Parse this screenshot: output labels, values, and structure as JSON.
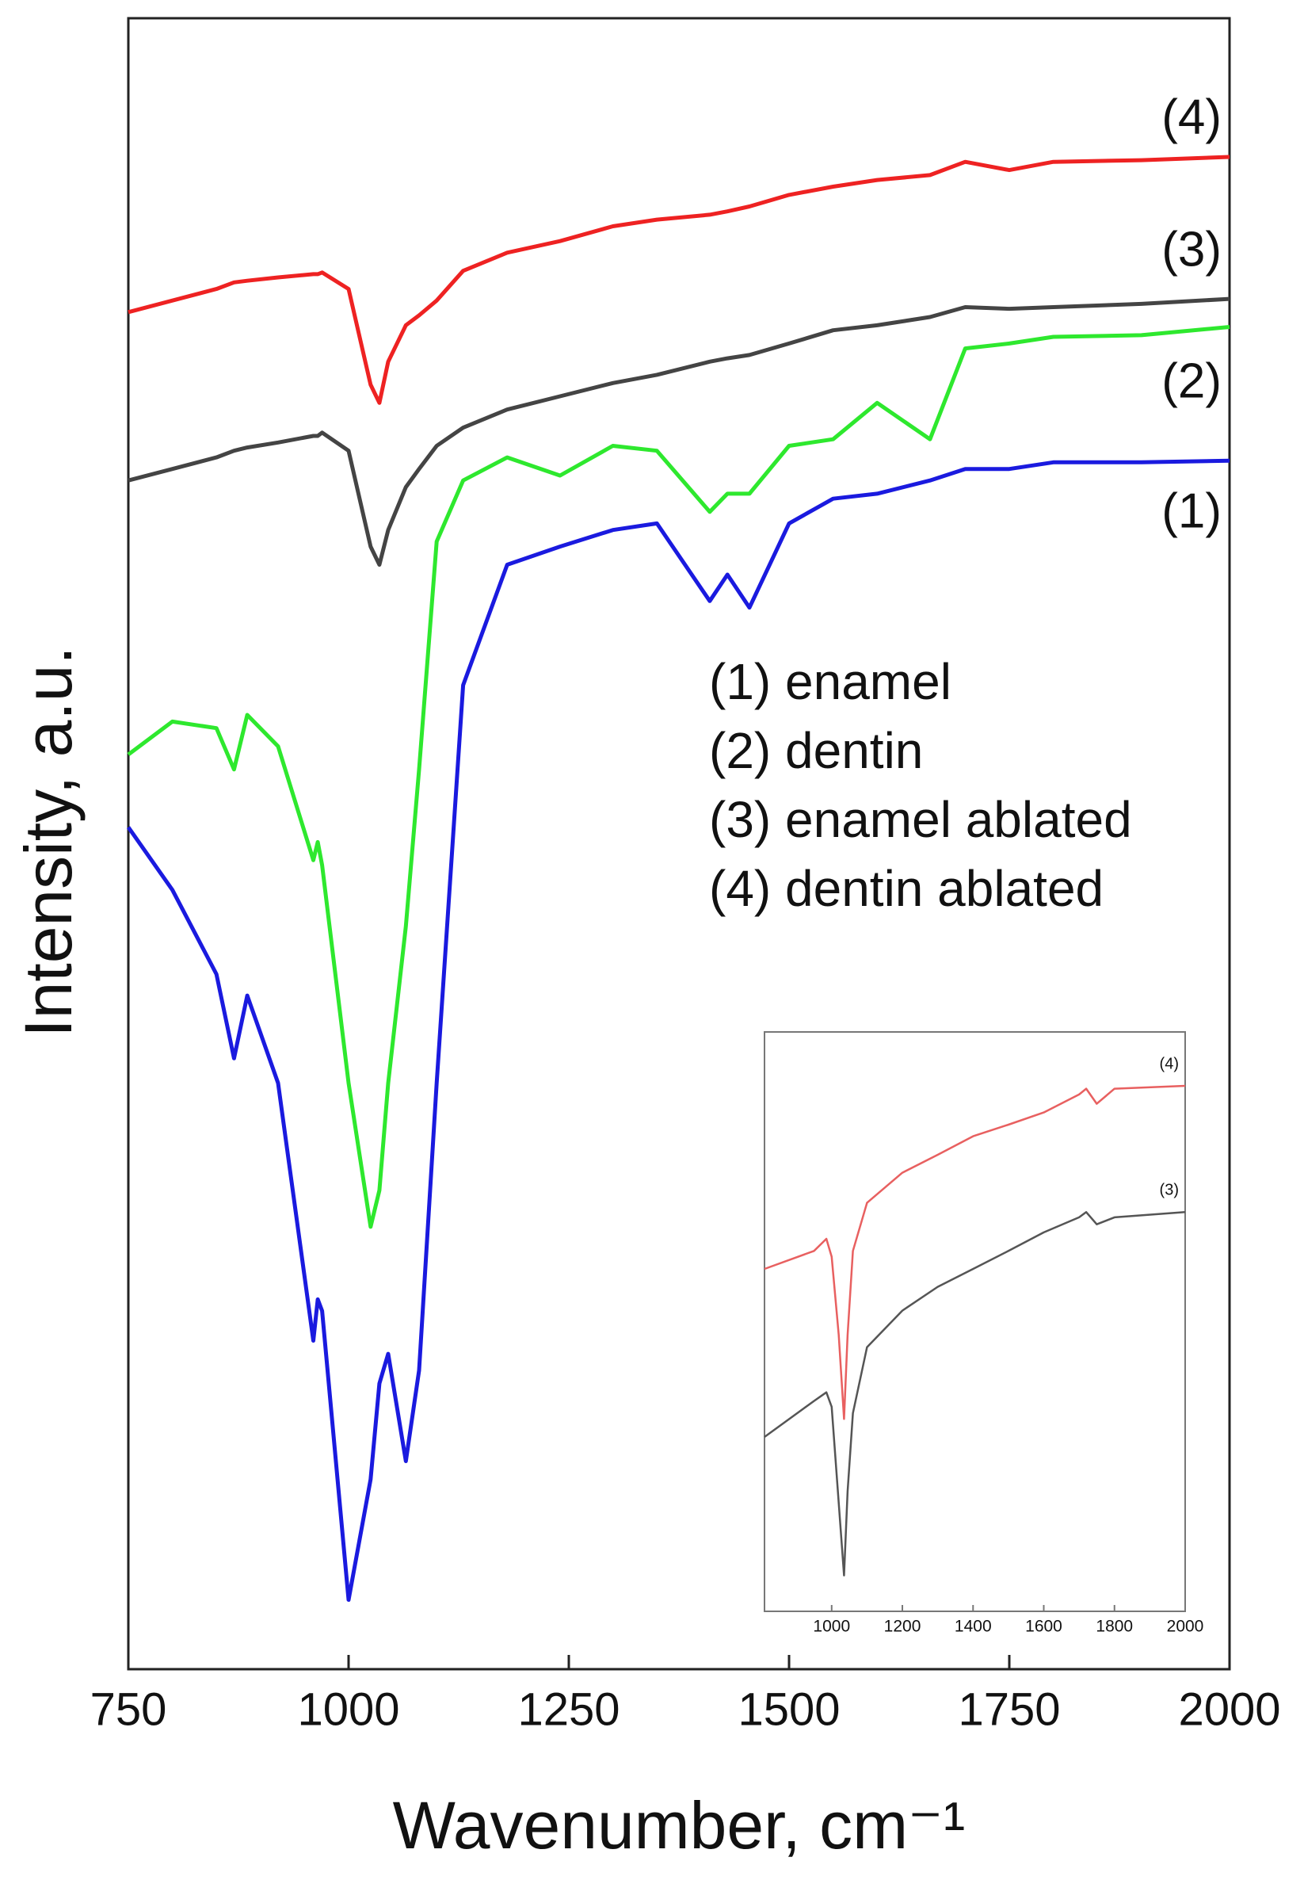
{
  "chart_data": [
    {
      "type": "line",
      "x_label": "Wavenumber, cm⁻¹",
      "y_label": "Intensity, a.u.",
      "xlim": [
        750,
        2000
      ],
      "xticks": [
        750,
        1000,
        1250,
        1500,
        1750,
        2000
      ],
      "ylim": [
        0,
        100
      ],
      "x": [
        750,
        800,
        850,
        870,
        885,
        920,
        960,
        965,
        970,
        1000,
        1025,
        1035,
        1045,
        1065,
        1080,
        1100,
        1130,
        1180,
        1240,
        1300,
        1350,
        1410,
        1430,
        1455,
        1500,
        1550,
        1600,
        1660,
        1700,
        1750,
        1800,
        1900,
        2000
      ],
      "series": [
        {
          "name": "(1) enamel",
          "label": "(1)",
          "color": "#1a1adf",
          "values": [
            51.0,
            47.2,
            42.1,
            37.0,
            40.8,
            35.5,
            19.9,
            22.4,
            21.7,
            4.2,
            11.5,
            17.3,
            19.1,
            12.6,
            18.1,
            35.5,
            59.6,
            66.9,
            68.0,
            69.0,
            69.4,
            64.7,
            66.3,
            64.3,
            69.4,
            70.9,
            71.2,
            72.0,
            72.7,
            72.7,
            73.1,
            73.1,
            73.2
          ]
        },
        {
          "name": "(2) dentin",
          "label": "(2)",
          "color": "#2ee82e",
          "values": [
            55.4,
            57.4,
            57.0,
            54.5,
            57.8,
            55.9,
            49.0,
            50.1,
            48.7,
            35.5,
            26.8,
            29.0,
            35.5,
            45.0,
            54.5,
            68.3,
            72.0,
            73.4,
            72.3,
            74.1,
            73.8,
            70.1,
            71.2,
            71.2,
            74.1,
            74.5,
            76.7,
            74.5,
            80.0,
            80.3,
            80.7,
            80.8,
            81.3
          ]
        },
        {
          "name": "(3) enamel ablated",
          "label": "(3)",
          "color": "#444444",
          "values": [
            72.0,
            72.7,
            73.4,
            73.8,
            74.0,
            74.3,
            74.7,
            74.7,
            74.9,
            73.8,
            68.0,
            66.9,
            69.0,
            71.6,
            72.7,
            74.1,
            75.2,
            76.3,
            77.1,
            77.9,
            78.4,
            79.2,
            79.4,
            79.6,
            80.3,
            81.1,
            81.4,
            81.9,
            82.5,
            82.4,
            82.5,
            82.7,
            83.0
          ]
        },
        {
          "name": "(4) dentin ablated",
          "label": "(4)",
          "color": "#ee2222",
          "values": [
            82.2,
            82.9,
            83.6,
            84.0,
            84.1,
            84.3,
            84.5,
            84.5,
            84.6,
            83.6,
            77.8,
            76.7,
            79.2,
            81.4,
            82.0,
            82.9,
            84.7,
            85.8,
            86.5,
            87.4,
            87.8,
            88.1,
            88.3,
            88.6,
            89.3,
            89.8,
            90.2,
            90.5,
            91.3,
            90.8,
            91.3,
            91.4,
            91.6
          ]
        }
      ]
    },
    {
      "type": "line",
      "xlim": [
        810,
        2000
      ],
      "xticks": [
        1000,
        1200,
        1400,
        1600,
        1800,
        2000
      ],
      "ylim": [
        0,
        100
      ],
      "x": [
        810,
        950,
        985,
        1000,
        1020,
        1035,
        1045,
        1060,
        1100,
        1200,
        1300,
        1400,
        1500,
        1600,
        1700,
        1720,
        1750,
        1800,
        2000
      ],
      "series": [
        {
          "name": "(4)",
          "color": "#e86060",
          "values": [
            59.1,
            62.2,
            64.3,
            61.2,
            47.7,
            33.2,
            47.7,
            62.2,
            70.5,
            75.7,
            78.8,
            82.0,
            84.0,
            86.1,
            89.2,
            90.2,
            87.6,
            90.2,
            90.7
          ]
        },
        {
          "name": "(3)",
          "color": "#555555",
          "values": [
            30.1,
            36.3,
            37.8,
            35.3,
            18.7,
            6.2,
            20.7,
            34.2,
            45.6,
            51.9,
            56.0,
            59.1,
            62.2,
            65.4,
            68.0,
            68.9,
            66.8,
            68.0,
            68.9
          ]
        }
      ]
    }
  ]
}
